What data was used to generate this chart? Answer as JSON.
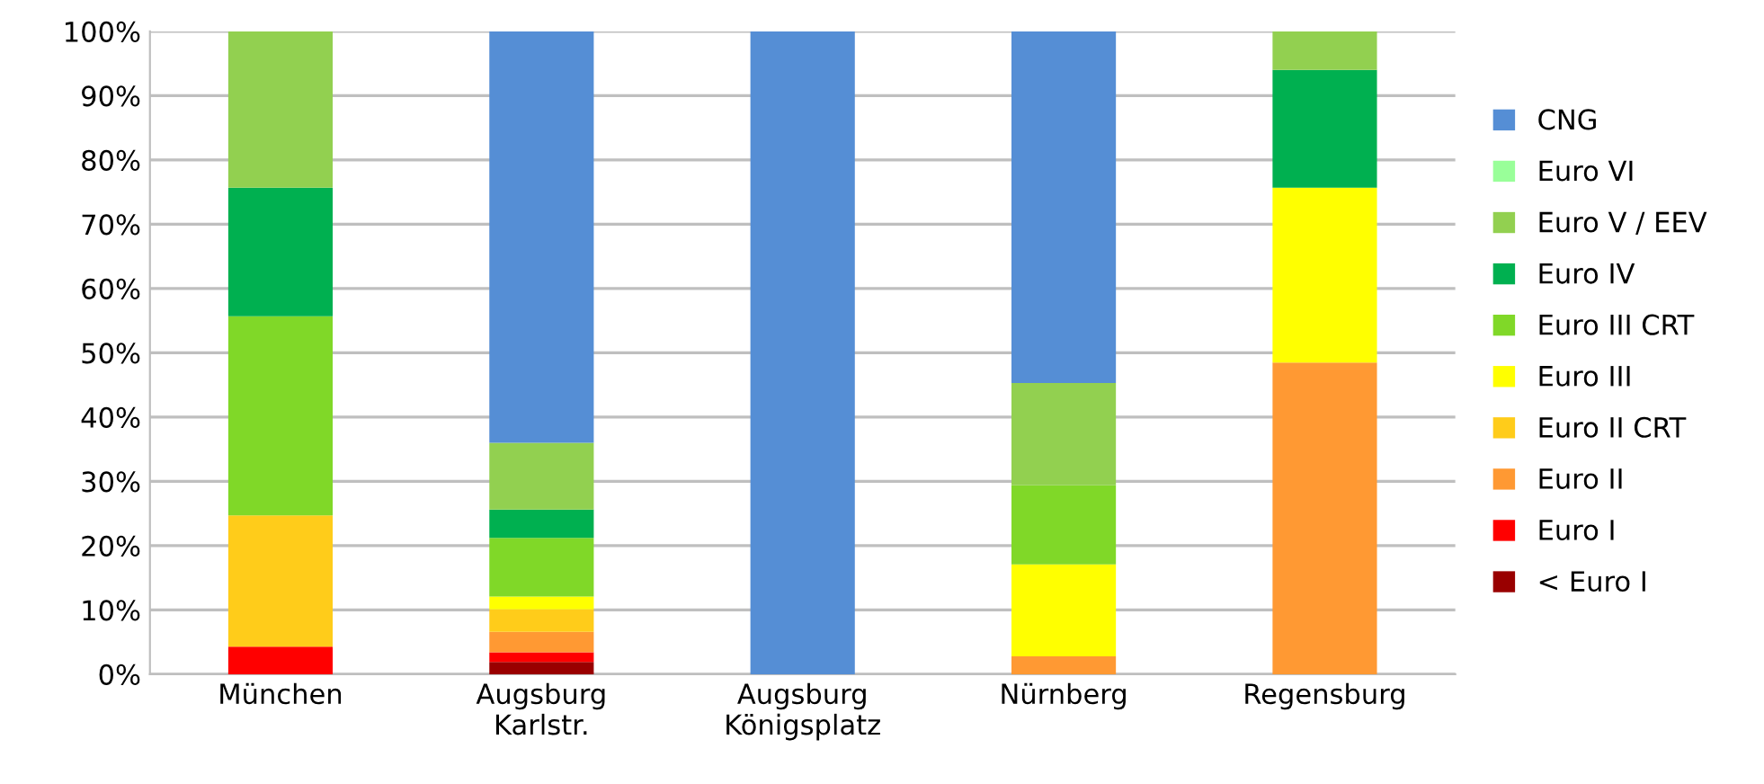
{
  "chart_data": {
    "type": "bar",
    "stacked": true,
    "categories": [
      "München",
      "Augsburg\nKarlstr.",
      "Augsburg\nKönigsplatz",
      "Nürnberg",
      "Regensburg"
    ],
    "series": [
      {
        "name": "< Euro I",
        "color": "#990000",
        "values": [
          0,
          1.9,
          0,
          0,
          0
        ]
      },
      {
        "name": "Euro I",
        "color": "#ff0000",
        "values": [
          4.3,
          1.5,
          0,
          0,
          0
        ]
      },
      {
        "name": "Euro II",
        "color": "#ff9933",
        "values": [
          0,
          3.2,
          0,
          2.8,
          48.5
        ]
      },
      {
        "name": "Euro II CRT",
        "color": "#ffcc1a",
        "values": [
          20.4,
          3.5,
          0,
          0,
          0
        ]
      },
      {
        "name": "Euro III",
        "color": "#ffff00",
        "values": [
          0,
          2.0,
          0,
          14.3,
          27.2
        ]
      },
      {
        "name": "Euro III CRT",
        "color": "#80d828",
        "values": [
          31.0,
          9.1,
          0,
          12.3,
          0
        ]
      },
      {
        "name": "Euro IV",
        "color": "#00b050",
        "values": [
          20.0,
          4.4,
          0,
          0,
          18.3
        ]
      },
      {
        "name": "Euro V / EEV",
        "color": "#92d050",
        "values": [
          24.3,
          10.4,
          0,
          15.9,
          6.0
        ]
      },
      {
        "name": "Euro VI",
        "color": "#99ff99",
        "values": [
          0,
          0,
          0,
          0,
          0
        ]
      },
      {
        "name": "CNG",
        "color": "#558ed5",
        "values": [
          0,
          64.0,
          100,
          54.7,
          0
        ]
      }
    ],
    "ylim": [
      0,
      100
    ],
    "yticks": [
      {
        "value": 0,
        "label": "0%"
      },
      {
        "value": 10,
        "label": "10%"
      },
      {
        "value": 20,
        "label": "20%"
      },
      {
        "value": 30,
        "label": "30%"
      },
      {
        "value": 40,
        "label": "40%"
      },
      {
        "value": 50,
        "label": "50%"
      },
      {
        "value": 60,
        "label": "60%"
      },
      {
        "value": 70,
        "label": "70%"
      },
      {
        "value": 80,
        "label": "80%"
      },
      {
        "value": 90,
        "label": "90%"
      },
      {
        "value": 100,
        "label": "100%"
      }
    ],
    "grid": "y",
    "legend": "right"
  }
}
